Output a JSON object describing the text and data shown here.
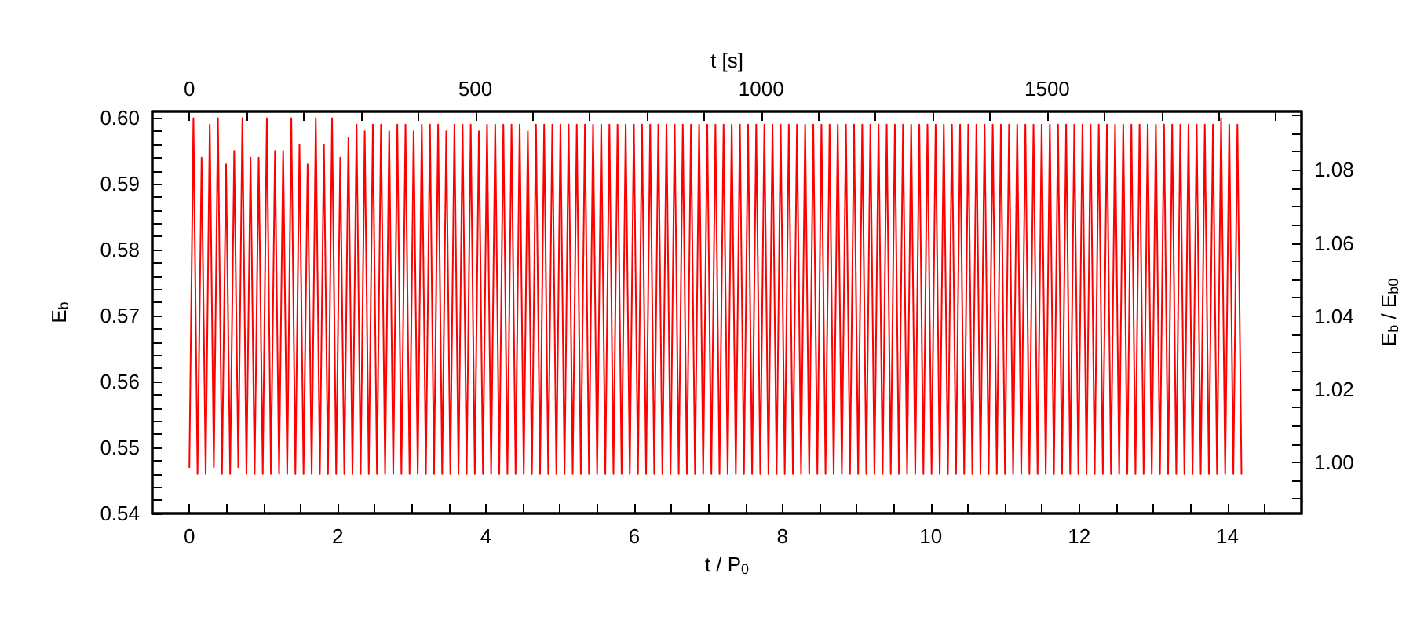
{
  "chart_data": {
    "type": "line",
    "xlabel": "t / P$_{0}$",
    "ylabel": "E$_{b}$",
    "x2label": "t [s]",
    "y2label": "E$_{b}$ / E$_{b0}$",
    "xlim": [
      -0.5,
      15
    ],
    "xticks": [
      0,
      {
        "value": 0.5,
        "label": null
      },
      {
        "value": 1,
        "label": null
      },
      {
        "value": 1.5,
        "label": null
      },
      2,
      {
        "value": 2.5,
        "label": null
      },
      {
        "value": 3,
        "label": null
      },
      {
        "value": 3.5,
        "label": null
      },
      4,
      {
        "value": 4.5,
        "label": null
      },
      {
        "value": 5,
        "label": null
      },
      {
        "value": 5.5,
        "label": null
      },
      6,
      {
        "value": 6.5,
        "label": null
      },
      {
        "value": 7,
        "label": null
      },
      {
        "value": 7.5,
        "label": null
      },
      8,
      {
        "value": 8.5,
        "label": null
      },
      {
        "value": 9,
        "label": null
      },
      {
        "value": 9.5,
        "label": null
      },
      10,
      {
        "value": 10.5,
        "label": null
      },
      {
        "value": 11,
        "label": null
      },
      {
        "value": 11.5,
        "label": null
      },
      12,
      {
        "value": 12.5,
        "label": null
      },
      {
        "value": 13,
        "label": null
      },
      {
        "value": 13.5,
        "label": null
      },
      14,
      {
        "value": 14.5,
        "label": null
      }
    ],
    "x2lim": [
      -65,
      1945
    ],
    "x2ticks": [
      0,
      {
        "value": 100,
        "label": null
      },
      {
        "value": 200,
        "label": null
      },
      {
        "value": 300,
        "label": null
      },
      {
        "value": 400,
        "label": null
      },
      500,
      {
        "value": 600,
        "label": null
      },
      {
        "value": 700,
        "label": null
      },
      {
        "value": 800,
        "label": null
      },
      {
        "value": 900,
        "label": null
      },
      1000,
      {
        "value": 1100,
        "label": null
      },
      {
        "value": 1200,
        "label": null
      },
      {
        "value": 1300,
        "label": null
      },
      {
        "value": 1400,
        "label": null
      },
      1500,
      {
        "value": 1600,
        "label": null
      },
      {
        "value": 1700,
        "label": null
      },
      {
        "value": 1800,
        "label": null
      },
      {
        "value": 1900,
        "label": null
      }
    ],
    "ylim": [
      0.54,
      0.601
    ],
    "yticks": [
      0.54,
      {
        "value": 0.542,
        "label": null
      },
      {
        "value": 0.544,
        "label": null
      },
      {
        "value": 0.546,
        "label": null
      },
      {
        "value": 0.548,
        "label": null
      },
      0.55,
      {
        "value": 0.552,
        "label": null
      },
      {
        "value": 0.554,
        "label": null
      },
      {
        "value": 0.556,
        "label": null
      },
      {
        "value": 0.558,
        "label": null
      },
      0.56,
      {
        "value": 0.562,
        "label": null
      },
      {
        "value": 0.564,
        "label": null
      },
      {
        "value": 0.566,
        "label": null
      },
      {
        "value": 0.568,
        "label": null
      },
      0.57,
      {
        "value": 0.572,
        "label": null
      },
      {
        "value": 0.574,
        "label": null
      },
      {
        "value": 0.576,
        "label": null
      },
      {
        "value": 0.578,
        "label": null
      },
      0.58,
      {
        "value": 0.582,
        "label": null
      },
      {
        "value": 0.584,
        "label": null
      },
      {
        "value": 0.586,
        "label": null
      },
      {
        "value": 0.588,
        "label": null
      },
      0.59,
      {
        "value": 0.592,
        "label": null
      },
      {
        "value": 0.594,
        "label": null
      },
      {
        "value": 0.596,
        "label": null
      },
      {
        "value": 0.598,
        "label": null
      },
      {
        "value": 0.6,
        "label": "0.60"
      }
    ],
    "y2lim": [
      0.986,
      1.096
    ],
    "y2ticks": [
      {
        "value": 0.99,
        "label": null
      },
      {
        "value": 0.995,
        "label": null
      },
      {
        "value": 1,
        "label": "1.00"
      },
      {
        "value": 1.005,
        "label": null
      },
      {
        "value": 1.01,
        "label": null
      },
      {
        "value": 1.015,
        "label": null
      },
      1.02,
      {
        "value": 1.025,
        "label": null
      },
      {
        "value": 1.03,
        "label": null
      },
      {
        "value": 1.035,
        "label": null
      },
      1.04,
      {
        "value": 1.045,
        "label": null
      },
      {
        "value": 1.05,
        "label": null
      },
      {
        "value": 1.055,
        "label": null
      },
      1.06,
      {
        "value": 1.065,
        "label": null
      },
      {
        "value": 1.07,
        "label": null
      },
      {
        "value": 1.075,
        "label": null
      },
      1.08,
      {
        "value": 1.085,
        "label": null
      },
      {
        "value": 1.09,
        "label": null
      },
      {
        "value": 1.095,
        "label": null
      }
    ],
    "grid": false,
    "marker": "none",
    "line_style": "solid",
    "series": [
      {
        "color": "#ff0000",
        "x": [
          0,
          0.055,
          0.11,
          0.165,
          0.22,
          0.275,
          0.33,
          0.385,
          0.44,
          0.495,
          0.55,
          0.605,
          0.66,
          0.715,
          0.77,
          0.825,
          0.88,
          0.935,
          0.99,
          1.045,
          1.1,
          1.155,
          1.21,
          1.265,
          1.32,
          1.375,
          1.43,
          1.485,
          1.54,
          1.595,
          1.65,
          1.705,
          1.76,
          1.815,
          1.87,
          1.925,
          1.98,
          2.035,
          2.09,
          2.145,
          2.2,
          2.255,
          2.31,
          2.365,
          2.42,
          2.475,
          2.53,
          2.585,
          2.64,
          2.695,
          2.75,
          2.805,
          2.86,
          2.915,
          2.97,
          3.025,
          3.08,
          3.135,
          3.19,
          3.245,
          3.3,
          3.355,
          3.41,
          3.465,
          3.52,
          3.575,
          3.63,
          3.685,
          3.74,
          3.795,
          3.85,
          3.905,
          3.96,
          4.015,
          4.07,
          4.125,
          4.18,
          4.235,
          4.29,
          4.345,
          4.4,
          4.455,
          4.51,
          4.565,
          4.62,
          4.675,
          4.73,
          4.785,
          4.84,
          4.895,
          4.95,
          5.005,
          5.06,
          5.115,
          5.17,
          5.225,
          5.28,
          5.335,
          5.39,
          5.445,
          5.5,
          5.555,
          5.61,
          5.665,
          5.72,
          5.775,
          5.83,
          5.885,
          5.94,
          5.995,
          6.05,
          6.105,
          6.16,
          6.215,
          6.27,
          6.325,
          6.38,
          6.435,
          6.49,
          6.545,
          6.6,
          6.655,
          6.71,
          6.765,
          6.82,
          6.875,
          6.93,
          6.985,
          7.04,
          7.095,
          7.15,
          7.205,
          7.26,
          7.315,
          7.37,
          7.425,
          7.48,
          7.535,
          7.59,
          7.645,
          7.7,
          7.755,
          7.81,
          7.865,
          7.92,
          7.975,
          8.03,
          8.085,
          8.14,
          8.195,
          8.25,
          8.305,
          8.36,
          8.415,
          8.47,
          8.525,
          8.58,
          8.635,
          8.69,
          8.745,
          8.8,
          8.855,
          8.91,
          8.965,
          9.02,
          9.075,
          9.13,
          9.185,
          9.24,
          9.295,
          9.35,
          9.405,
          9.46,
          9.515,
          9.57,
          9.625,
          9.68,
          9.735,
          9.79,
          9.845,
          9.9,
          9.955,
          10.01,
          10.065,
          10.12,
          10.175,
          10.23,
          10.285,
          10.34,
          10.395,
          10.45,
          10.505,
          10.56,
          10.615,
          10.67,
          10.725,
          10.78,
          10.835,
          10.89,
          10.945,
          11,
          11.055,
          11.11,
          11.165,
          11.22,
          11.275,
          11.33,
          11.385,
          11.44,
          11.495,
          11.55,
          11.605,
          11.66,
          11.715,
          11.77,
          11.825,
          11.88,
          11.935,
          11.99,
          12.045,
          12.1,
          12.155,
          12.21,
          12.265,
          12.32,
          12.375,
          12.43,
          12.485,
          12.54,
          12.595,
          12.65,
          12.705,
          12.76,
          12.815,
          12.87,
          12.925,
          12.98,
          13.035,
          13.09,
          13.145,
          13.2,
          13.255,
          13.31,
          13.365,
          13.42,
          13.475,
          13.53,
          13.585,
          13.64,
          13.695,
          13.75,
          13.805,
          13.86,
          13.915,
          13.97,
          14.025,
          14.08,
          14.135,
          14.19
        ],
        "values": [
          0.547,
          0.6,
          0.546,
          0.594,
          0.546,
          0.599,
          0.547,
          0.6,
          0.546,
          0.593,
          0.546,
          0.595,
          0.547,
          0.6,
          0.546,
          0.594,
          0.546,
          0.594,
          0.546,
          0.6,
          0.546,
          0.595,
          0.546,
          0.595,
          0.546,
          0.6,
          0.546,
          0.596,
          0.546,
          0.593,
          0.546,
          0.6,
          0.546,
          0.596,
          0.546,
          0.6,
          0.546,
          0.594,
          0.546,
          0.597,
          0.546,
          0.599,
          0.546,
          0.598,
          0.546,
          0.599,
          0.546,
          0.599,
          0.546,
          0.598,
          0.546,
          0.599,
          0.546,
          0.599,
          0.546,
          0.598,
          0.546,
          0.599,
          0.546,
          0.599,
          0.546,
          0.599,
          0.546,
          0.598,
          0.546,
          0.599,
          0.546,
          0.599,
          0.546,
          0.599,
          0.546,
          0.598,
          0.546,
          0.599,
          0.546,
          0.599,
          0.546,
          0.599,
          0.546,
          0.599,
          0.546,
          0.599,
          0.546,
          0.598,
          0.546,
          0.599,
          0.546,
          0.599,
          0.546,
          0.599,
          0.546,
          0.599,
          0.546,
          0.599,
          0.546,
          0.599,
          0.546,
          0.599,
          0.546,
          0.599,
          0.546,
          0.599,
          0.546,
          0.599,
          0.546,
          0.599,
          0.546,
          0.599,
          0.546,
          0.599,
          0.546,
          0.599,
          0.546,
          0.599,
          0.546,
          0.599,
          0.546,
          0.599,
          0.546,
          0.599,
          0.546,
          0.599,
          0.546,
          0.599,
          0.546,
          0.599,
          0.546,
          0.599,
          0.546,
          0.599,
          0.546,
          0.599,
          0.546,
          0.599,
          0.546,
          0.599,
          0.546,
          0.599,
          0.546,
          0.599,
          0.546,
          0.599,
          0.546,
          0.599,
          0.546,
          0.599,
          0.546,
          0.599,
          0.546,
          0.599,
          0.546,
          0.599,
          0.546,
          0.599,
          0.546,
          0.599,
          0.546,
          0.599,
          0.546,
          0.599,
          0.546,
          0.599,
          0.546,
          0.599,
          0.546,
          0.599,
          0.546,
          0.599,
          0.546,
          0.599,
          0.546,
          0.599,
          0.546,
          0.599,
          0.546,
          0.599,
          0.546,
          0.599,
          0.546,
          0.599,
          0.546,
          0.599,
          0.546,
          0.599,
          0.546,
          0.599,
          0.546,
          0.599,
          0.546,
          0.599,
          0.546,
          0.599,
          0.546,
          0.599,
          0.546,
          0.599,
          0.546,
          0.599,
          0.546,
          0.599,
          0.546,
          0.599,
          0.546,
          0.599,
          0.546,
          0.599,
          0.546,
          0.599,
          0.546,
          0.599,
          0.546,
          0.599,
          0.546,
          0.599,
          0.546,
          0.599,
          0.546,
          0.599,
          0.546,
          0.599,
          0.546,
          0.599,
          0.546,
          0.599,
          0.546,
          0.599,
          0.546,
          0.599,
          0.546,
          0.599,
          0.546,
          0.599,
          0.546,
          0.599,
          0.546,
          0.599,
          0.546,
          0.599,
          0.546,
          0.599,
          0.546,
          0.599,
          0.546,
          0.599,
          0.546,
          0.599,
          0.546,
          0.599,
          0.546,
          0.599,
          0.546,
          0.599,
          0.546,
          0.6,
          0.546,
          0.599,
          0.546,
          0.599,
          0.546
        ]
      }
    ]
  }
}
